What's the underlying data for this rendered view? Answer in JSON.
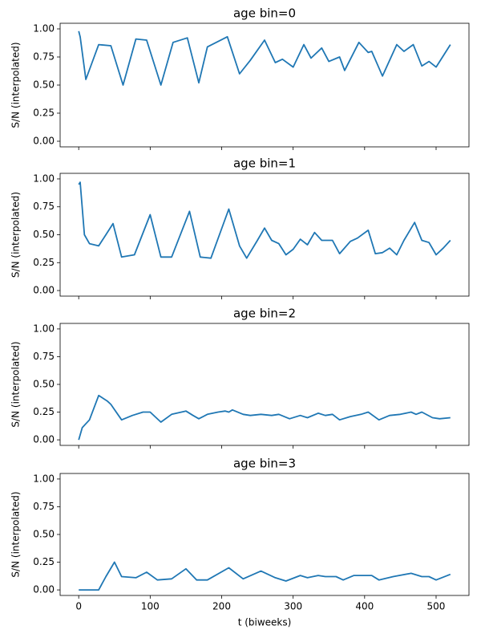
{
  "chart_data": [
    {
      "type": "line",
      "title": "age bin=0",
      "ylabel": "S/N (interpolated)",
      "x": [
        0,
        2,
        10,
        28,
        45,
        62,
        80,
        95,
        115,
        132,
        152,
        168,
        180,
        208,
        225,
        240,
        260,
        275,
        285,
        300,
        315,
        325,
        340,
        350,
        365,
        372,
        392,
        405,
        410,
        425,
        445,
        455,
        468,
        480,
        490,
        500,
        520
      ],
      "series": [
        {
          "color": "#1f77b4",
          "values": [
            0.98,
            0.93,
            0.55,
            0.86,
            0.85,
            0.5,
            0.91,
            0.9,
            0.5,
            0.88,
            0.92,
            0.52,
            0.84,
            0.93,
            0.6,
            0.72,
            0.9,
            0.7,
            0.73,
            0.66,
            0.86,
            0.74,
            0.83,
            0.71,
            0.75,
            0.63,
            0.88,
            0.79,
            0.8,
            0.58,
            0.86,
            0.8,
            0.86,
            0.67,
            0.71,
            0.66,
            0.86
          ]
        }
      ],
      "xlim": [
        -26,
        546
      ],
      "xticks": [
        0,
        100,
        200,
        300,
        400,
        500
      ],
      "ylim": [
        -0.05,
        1.05
      ],
      "yticks": [
        {
          "value": 0,
          "label": "0.00"
        },
        {
          "value": 0.25,
          "label": "0.25"
        },
        {
          "value": 0.5,
          "label": "0.50"
        },
        {
          "value": 0.75,
          "label": "0.75"
        },
        {
          "value": 1,
          "label": "1.00"
        }
      ]
    },
    {
      "type": "line",
      "title": "age bin=1",
      "ylabel": "S/N (interpolated)",
      "x": [
        0,
        2,
        8,
        15,
        28,
        38,
        48,
        60,
        78,
        100,
        115,
        130,
        155,
        170,
        185,
        210,
        225,
        235,
        250,
        260,
        270,
        280,
        290,
        300,
        310,
        320,
        330,
        340,
        355,
        365,
        380,
        390,
        405,
        415,
        425,
        435,
        445,
        455,
        470,
        480,
        490,
        500,
        510,
        520
      ],
      "series": [
        {
          "color": "#1f77b4",
          "values": [
            0.95,
            0.97,
            0.5,
            0.42,
            0.4,
            0.5,
            0.6,
            0.3,
            0.32,
            0.68,
            0.3,
            0.3,
            0.71,
            0.3,
            0.29,
            0.73,
            0.4,
            0.29,
            0.45,
            0.56,
            0.45,
            0.42,
            0.32,
            0.37,
            0.46,
            0.41,
            0.52,
            0.45,
            0.45,
            0.33,
            0.44,
            0.47,
            0.54,
            0.33,
            0.34,
            0.38,
            0.32,
            0.45,
            0.61,
            0.45,
            0.43,
            0.32,
            0.38,
            0.45
          ]
        }
      ],
      "xlim": [
        -26,
        546
      ],
      "xticks": [
        0,
        100,
        200,
        300,
        400,
        500
      ],
      "ylim": [
        -0.05,
        1.05
      ],
      "yticks": [
        {
          "value": 0,
          "label": "0.00"
        },
        {
          "value": 0.25,
          "label": "0.25"
        },
        {
          "value": 0.5,
          "label": "0.50"
        },
        {
          "value": 0.75,
          "label": "0.75"
        },
        {
          "value": 1,
          "label": "1.00"
        }
      ]
    },
    {
      "type": "line",
      "title": "age bin=2",
      "ylabel": "S/N (interpolated)",
      "x": [
        0,
        5,
        15,
        28,
        40,
        45,
        60,
        75,
        90,
        100,
        115,
        130,
        150,
        160,
        168,
        180,
        195,
        205,
        210,
        215,
        230,
        240,
        255,
        270,
        280,
        295,
        310,
        320,
        335,
        345,
        355,
        365,
        380,
        395,
        405,
        420,
        435,
        450,
        465,
        472,
        480,
        495,
        505,
        520
      ],
      "series": [
        {
          "color": "#1f77b4",
          "values": [
            0,
            0.11,
            0.18,
            0.4,
            0.35,
            0.32,
            0.18,
            0.22,
            0.25,
            0.25,
            0.16,
            0.23,
            0.26,
            0.22,
            0.19,
            0.23,
            0.25,
            0.26,
            0.25,
            0.27,
            0.23,
            0.22,
            0.23,
            0.22,
            0.23,
            0.19,
            0.22,
            0.2,
            0.24,
            0.22,
            0.23,
            0.18,
            0.21,
            0.23,
            0.25,
            0.18,
            0.22,
            0.23,
            0.25,
            0.23,
            0.25,
            0.2,
            0.19,
            0.2
          ]
        }
      ],
      "xlim": [
        -26,
        546
      ],
      "xticks": [
        0,
        100,
        200,
        300,
        400,
        500
      ],
      "ylim": [
        -0.05,
        1.05
      ],
      "yticks": [
        {
          "value": 0,
          "label": "0.00"
        },
        {
          "value": 0.25,
          "label": "0.25"
        },
        {
          "value": 0.5,
          "label": "0.50"
        },
        {
          "value": 0.75,
          "label": "0.75"
        },
        {
          "value": 1,
          "label": "1.00"
        }
      ]
    },
    {
      "type": "line",
      "title": "age bin=3",
      "ylabel": "S/N (interpolated)",
      "xlabel": "t (biweeks)",
      "x": [
        0,
        28,
        38,
        50,
        60,
        80,
        95,
        110,
        130,
        150,
        165,
        180,
        210,
        230,
        255,
        275,
        290,
        310,
        320,
        335,
        345,
        360,
        370,
        385,
        400,
        410,
        420,
        440,
        465,
        480,
        490,
        500,
        520
      ],
      "series": [
        {
          "color": "#1f77b4",
          "values": [
            0,
            0,
            0.12,
            0.25,
            0.12,
            0.11,
            0.16,
            0.09,
            0.1,
            0.19,
            0.09,
            0.09,
            0.2,
            0.1,
            0.17,
            0.11,
            0.08,
            0.13,
            0.11,
            0.13,
            0.12,
            0.12,
            0.09,
            0.13,
            0.13,
            0.13,
            0.09,
            0.12,
            0.15,
            0.12,
            0.12,
            0.09,
            0.14
          ]
        }
      ],
      "xlim": [
        -26,
        546
      ],
      "xticks": [
        0,
        100,
        200,
        300,
        400,
        500
      ],
      "ylim": [
        -0.05,
        1.05
      ],
      "yticks": [
        {
          "value": 0,
          "label": "0.00"
        },
        {
          "value": 0.25,
          "label": "0.25"
        },
        {
          "value": 0.5,
          "label": "0.50"
        },
        {
          "value": 0.75,
          "label": "0.75"
        },
        {
          "value": 1,
          "label": "1.00"
        }
      ]
    }
  ]
}
